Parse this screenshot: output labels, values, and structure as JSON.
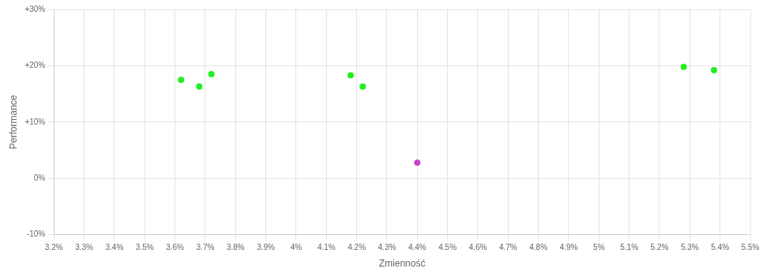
{
  "chart_data": {
    "type": "scatter",
    "xlabel": "Zmienność",
    "ylabel": "Performance",
    "xlim": [
      0.032,
      0.055
    ],
    "ylim": [
      -0.1,
      0.3
    ],
    "xticks": [
      {
        "value": 0.032,
        "label": "3.2%"
      },
      {
        "value": 0.033,
        "label": "3.3%"
      },
      {
        "value": 0.034,
        "label": "3.4%"
      },
      {
        "value": 0.035,
        "label": "3.5%"
      },
      {
        "value": 0.036,
        "label": "3.6%"
      },
      {
        "value": 0.037,
        "label": "3.7%"
      },
      {
        "value": 0.038,
        "label": "3.8%"
      },
      {
        "value": 0.039,
        "label": "3.9%"
      },
      {
        "value": 0.04,
        "label": "4%"
      },
      {
        "value": 0.041,
        "label": "4.1%"
      },
      {
        "value": 0.042,
        "label": "4.2%"
      },
      {
        "value": 0.043,
        "label": "4.3%"
      },
      {
        "value": 0.044,
        "label": "4.4%"
      },
      {
        "value": 0.045,
        "label": "4.5%"
      },
      {
        "value": 0.046,
        "label": "4.6%"
      },
      {
        "value": 0.047,
        "label": "4.7%"
      },
      {
        "value": 0.048,
        "label": "4.8%"
      },
      {
        "value": 0.049,
        "label": "4.9%"
      },
      {
        "value": 0.05,
        "label": "5%"
      },
      {
        "value": 0.051,
        "label": "5.1%"
      },
      {
        "value": 0.052,
        "label": "5.2%"
      },
      {
        "value": 0.053,
        "label": "5.3%"
      },
      {
        "value": 0.054,
        "label": "5.4%"
      },
      {
        "value": 0.055,
        "label": "5.5%"
      }
    ],
    "yticks": [
      {
        "value": -0.1,
        "label": "-10%"
      },
      {
        "value": 0.0,
        "label": "0%"
      },
      {
        "value": 0.1,
        "label": "+10%"
      },
      {
        "value": 0.2,
        "label": "+20%"
      },
      {
        "value": 0.3,
        "label": "+30%"
      }
    ],
    "grid": true,
    "series": [
      {
        "color": "#22ee22",
        "x": [
          0.0362,
          0.0368,
          0.0372,
          0.0418,
          0.0422,
          0.0528,
          0.0538
        ],
        "values": [
          0.175,
          0.163,
          0.185,
          0.183,
          0.163,
          0.198,
          0.192
        ]
      },
      {
        "color": "#cc44cc",
        "x": [
          0.044
        ],
        "values": [
          0.028
        ]
      }
    ]
  }
}
